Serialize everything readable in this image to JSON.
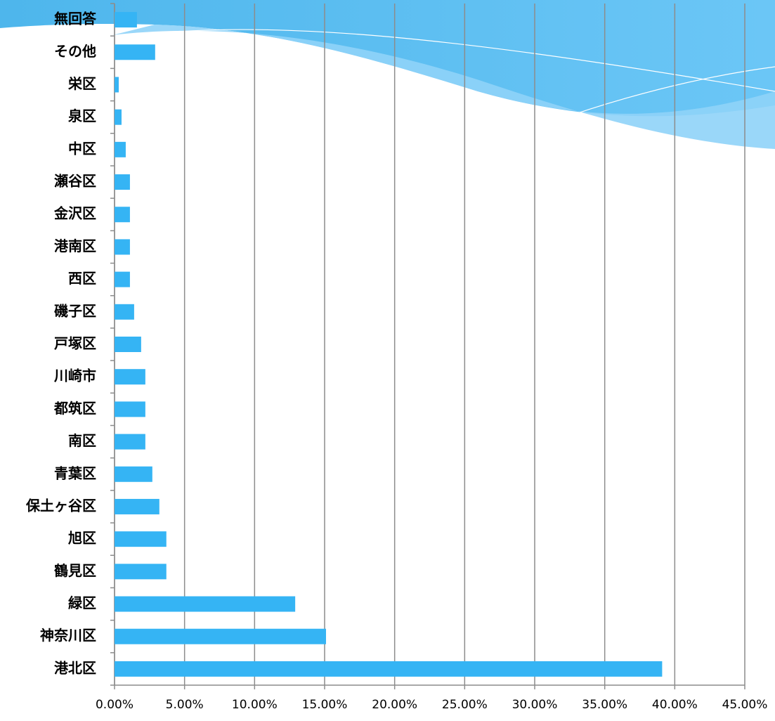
{
  "chart_data": {
    "type": "hbar",
    "categories": [
      "無回答",
      "その他",
      "栄区",
      "泉区",
      "中区",
      "瀬谷区",
      "金沢区",
      "港南区",
      "西区",
      "磯子区",
      "戸塚区",
      "川崎市",
      "都筑区",
      "南区",
      "青葉区",
      "保土ヶ谷区",
      "旭区",
      "鶴見区",
      "緑区",
      "神奈川区",
      "港北区"
    ],
    "values": [
      1.6,
      2.9,
      0.3,
      0.5,
      0.8,
      1.1,
      1.1,
      1.1,
      1.1,
      1.4,
      1.9,
      2.2,
      2.2,
      2.2,
      2.7,
      3.2,
      3.7,
      3.7,
      12.9,
      15.1,
      39.1
    ],
    "color": "#35b4f4",
    "xlim": [
      0,
      45
    ],
    "xticks": [
      {
        "value": 0,
        "label": "0.00%"
      },
      {
        "value": 5,
        "label": "5.00%"
      },
      {
        "value": 10,
        "label": "10.00%"
      },
      {
        "value": 15,
        "label": "15.00%"
      },
      {
        "value": 20,
        "label": "20.00%"
      },
      {
        "value": 25,
        "label": "25.00%"
      },
      {
        "value": 30,
        "label": "30.00%"
      },
      {
        "value": 35,
        "label": "35.00%"
      },
      {
        "value": 40,
        "label": "40.00%"
      },
      {
        "value": 45,
        "label": "45.00%"
      }
    ],
    "grid": true
  }
}
